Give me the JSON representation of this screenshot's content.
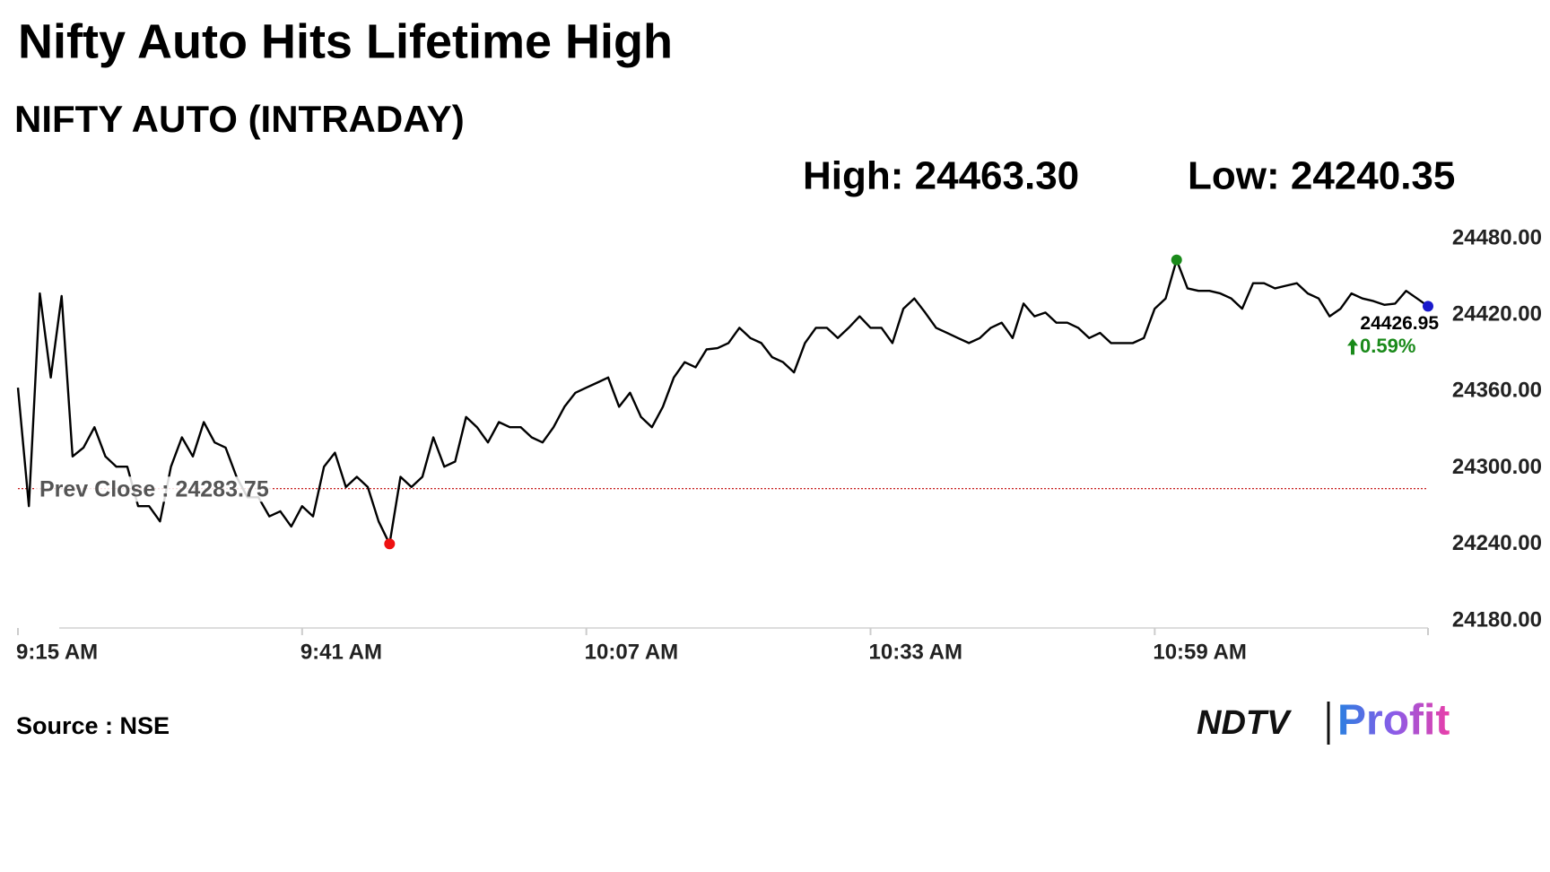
{
  "header": {
    "title": "Nifty Auto Hits Lifetime High",
    "subtitle": "NIFTY AUTO (INTRADAY)",
    "high": "High: 24463.30",
    "low": "Low: 24240.35",
    "source": "Source : NSE",
    "logo": {
      "brand": "NDTV",
      "product": "Profit"
    }
  },
  "chart_data": {
    "type": "line",
    "series": [
      {
        "name": "NIFTY AUTO",
        "color": "#000000",
        "values": [
          24363,
          24270,
          24437,
          24371,
          24435,
          24309,
          24316,
          24332,
          24309,
          24301,
          24301,
          24270,
          24270,
          24258,
          24301,
          24324,
          24309,
          24336,
          24320,
          24316,
          24293,
          24277,
          24277,
          24262,
          24266,
          24254,
          24270,
          24262,
          24301,
          24312,
          24285,
          24293,
          24285,
          24258,
          24240.35,
          24293,
          24285,
          24293,
          24324,
          24301,
          24305,
          24340,
          24332,
          24320,
          24336,
          24332,
          24332,
          24324,
          24320,
          24332,
          24348,
          24359,
          24363,
          24367,
          24371,
          24348,
          24359,
          24340,
          24332,
          24348,
          24371,
          24383,
          24379,
          24393,
          24394,
          24398,
          24410,
          24402,
          24398,
          24387,
          24383,
          24375,
          24398,
          24410,
          24410,
          24402,
          24410,
          24419,
          24410,
          24410,
          24398,
          24425,
          24433,
          24422,
          24410,
          24406,
          24402,
          24398,
          24402,
          24410,
          24414,
          24402,
          24429,
          24419,
          24422,
          24414,
          24414,
          24410,
          24402,
          24406,
          24398,
          24398,
          24398,
          24402,
          24425,
          24433,
          24463.3,
          24441,
          24439,
          24439,
          24437,
          24433,
          24425,
          24445,
          24445,
          24441,
          24443,
          24445,
          24437,
          24433,
          24419,
          24425,
          24437,
          24433,
          24431,
          24428,
          24429,
          24439,
          24433,
          24426.95
        ]
      }
    ],
    "xlim": [
      0,
      129
    ],
    "xticks": [
      {
        "value": 0,
        "label": "9:15 AM"
      },
      {
        "value": 26,
        "label": "9:41 AM"
      },
      {
        "value": 52,
        "label": "10:07 AM"
      },
      {
        "value": 78,
        "label": "10:33 AM"
      },
      {
        "value": 104,
        "label": "10:59 AM"
      }
    ],
    "ylim": [
      24180,
      24480
    ],
    "yticks": [
      {
        "value": 24480,
        "label": "24480.00"
      },
      {
        "value": 24420,
        "label": "24420.00"
      },
      {
        "value": 24360,
        "label": "24360.00"
      },
      {
        "value": 24300,
        "label": "24300.00"
      },
      {
        "value": 24240,
        "label": "24240.00"
      },
      {
        "value": 24180,
        "label": "24180.00"
      }
    ],
    "reference_line": {
      "value": 24283.75,
      "label": "Prev Close : 24283.75",
      "color": "#c00000"
    },
    "markers": {
      "high_index": 106,
      "high_color": "#1a8a1a",
      "low_index": 34,
      "low_color": "#ee1111",
      "last_index": 129,
      "last_color": "#1a1acc"
    },
    "change": {
      "value": 0.59,
      "label": "0.59%",
      "color": "#1a8a1a"
    }
  }
}
